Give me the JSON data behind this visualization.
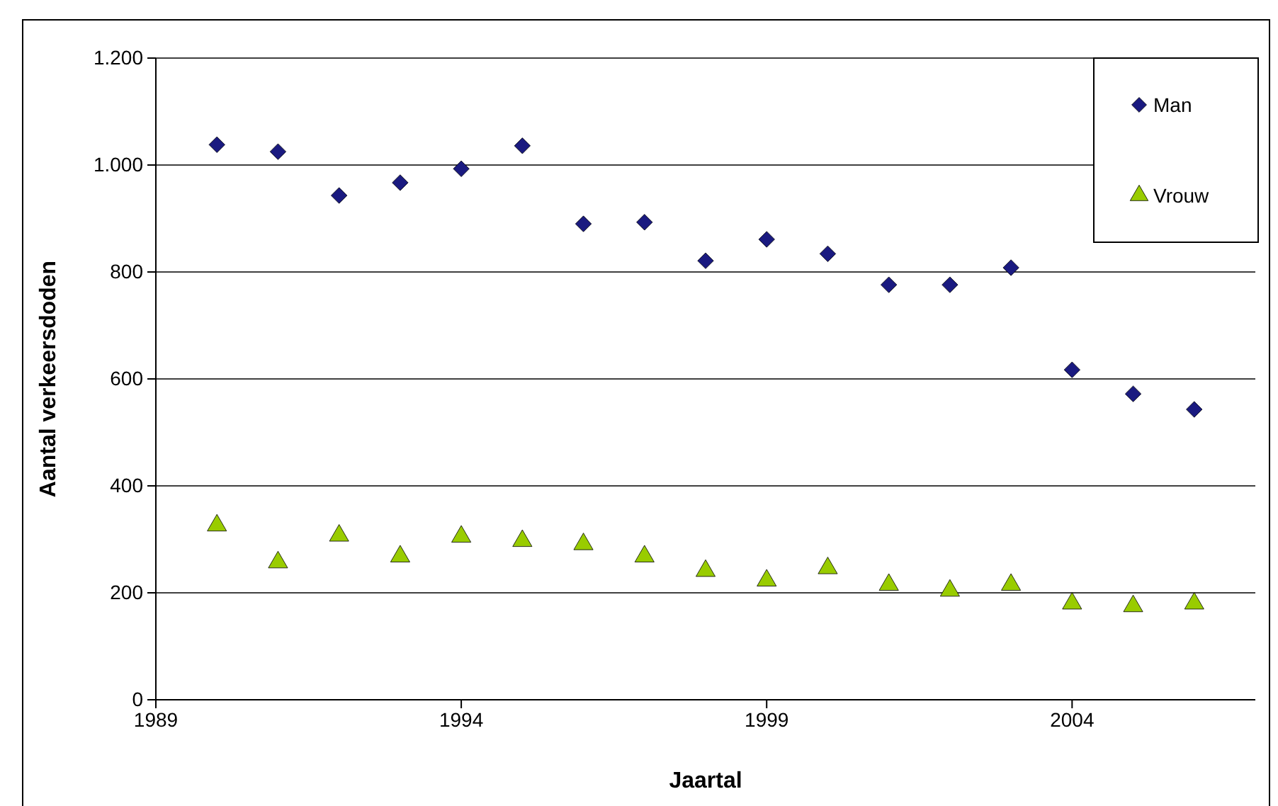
{
  "chart_data": {
    "type": "scatter",
    "xlabel": "Jaartal",
    "ylabel": "Aantal verkeersdoden",
    "x": [
      1990,
      1991,
      1992,
      1993,
      1994,
      1995,
      1996,
      1997,
      1998,
      1999,
      2000,
      2001,
      2002,
      2003,
      2004,
      2005,
      2006
    ],
    "series": [
      {
        "name": "Man",
        "color": "#1a1a80",
        "marker": "diamond",
        "values": [
          1038,
          1025,
          943,
          967,
          993,
          1036,
          890,
          893,
          821,
          861,
          834,
          776,
          776,
          808,
          617,
          572,
          543
        ]
      },
      {
        "name": "Vrouw",
        "color": "#99cc00",
        "marker": "triangle",
        "values": [
          326,
          257,
          307,
          268,
          305,
          297,
          291,
          268,
          241,
          223,
          246,
          215,
          204,
          215,
          180,
          175,
          180
        ]
      }
    ],
    "xlim": [
      1989,
      2007
    ],
    "xticks": [
      1989,
      1994,
      1999,
      2004
    ],
    "ylim": [
      0,
      1200
    ],
    "yticks": [
      0,
      200,
      400,
      600,
      800,
      {
        "value": 1000,
        "label": "1.000"
      },
      {
        "value": 1200,
        "label": "1.200"
      }
    ],
    "grid": "y",
    "legend": "top right"
  }
}
